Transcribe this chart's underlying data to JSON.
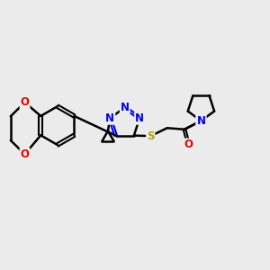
{
  "bg_color": "#ebebeb",
  "bond_color": "#000000",
  "N_color": "#0000ee",
  "O_color": "#ee0000",
  "S_color": "#aaaa00",
  "line_width": 1.8,
  "font_size": 8.5,
  "xlim": [
    0,
    10
  ],
  "ylim": [
    0,
    10
  ]
}
